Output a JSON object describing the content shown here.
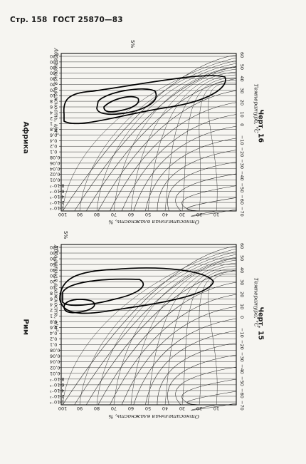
{
  "page_header": {
    "page_label": "Стр. 158",
    "standard": "ГОСТ 25870—83"
  },
  "chart_top": {
    "side_title": "Африка",
    "caption": "Черт. 16",
    "y_axis_label": "Абсолютная влажность, г/м³",
    "x_axis_label": "Относительная влажность, %",
    "temp_axis_label": "Температура, °С",
    "corner_label": "5%",
    "abs_ticks": [
      "120",
      "100",
      "80",
      "60",
      "40",
      "30",
      "20",
      "10",
      "8",
      "6",
      "4",
      "2",
      "1",
      "0,8",
      "0,6",
      "0,4",
      "0,2",
      "0,1",
      "0,08",
      "0,06",
      "0,04",
      "0,02",
      "0,01",
      "8·10⁻³",
      "6·10⁻³",
      "4·10⁻³",
      "2·10⁻³",
      "1·10⁻³"
    ],
    "rh_ticks": [
      "100",
      "90",
      "80",
      "70",
      "60",
      "50",
      "40",
      "30",
      "20",
      "10"
    ],
    "temp_ticks": [
      "60",
      "50",
      "40",
      "30",
      "20",
      "10",
      "0",
      "−10",
      "−20",
      "−30",
      "−40",
      "−50",
      "−60",
      "−70"
    ]
  },
  "chart_bottom": {
    "side_title": "Рим",
    "caption": "Черт. 15",
    "y_axis_label": "Абсолютная влажность, г/м³",
    "x_axis_label": "Относительная влажность, %",
    "temp_axis_label": "Температура, °С",
    "corner_label": "5%",
    "abs_ticks": [
      "120",
      "100",
      "80",
      "60",
      "40",
      "30",
      "20",
      "10",
      "8",
      "6",
      "4",
      "2",
      "1",
      "0,8",
      "0,6",
      "0,4",
      "0,2",
      "0,1",
      "0,08",
      "0,06",
      "0,04",
      "0,02",
      "0,01",
      "8·10⁻³",
      "6·10⁻³",
      "4·10⁻³",
      "2·10⁻³",
      "1·10⁻³"
    ],
    "rh_ticks": [
      "100",
      "90",
      "80",
      "70",
      "60",
      "50",
      "40",
      "30",
      "20",
      "10"
    ],
    "temp_ticks": [
      "60",
      "50",
      "40",
      "30",
      "20",
      "10",
      "0",
      "−10",
      "−20",
      "−30",
      "−40",
      "−50",
      "−60",
      "−70"
    ]
  }
}
